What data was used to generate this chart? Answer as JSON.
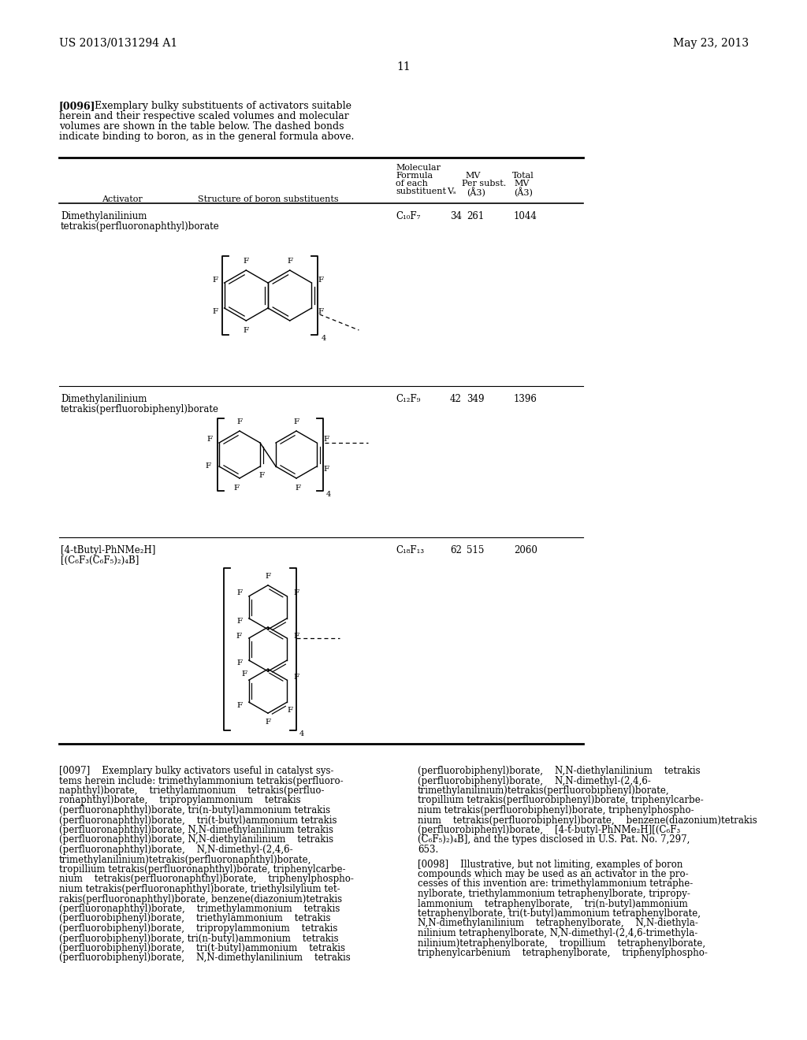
{
  "background_color": "#ffffff",
  "header_left": "US 2013/0131294 A1",
  "header_right": "May 23, 2013",
  "page_number": "11"
}
